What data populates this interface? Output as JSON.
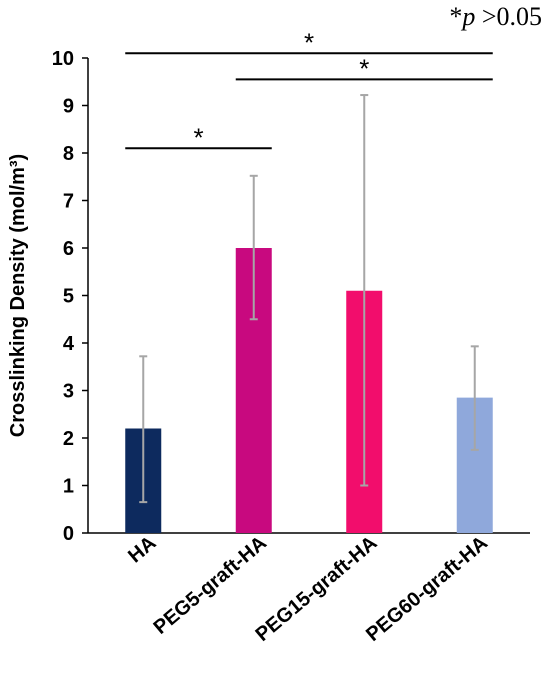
{
  "note": {
    "star": "*",
    "p": "p",
    "rest": " >0.05"
  },
  "chart_data": {
    "type": "bar",
    "title": "",
    "xlabel": "",
    "ylabel": "Crosslinking Density (mol/m³)",
    "ylim": [
      0,
      10
    ],
    "yticks": [
      0,
      1,
      2,
      3,
      4,
      5,
      6,
      7,
      8,
      9,
      10
    ],
    "categories": [
      "HA",
      "PEG5-graft-HA",
      "PEG15-graft-HA",
      "PEG60-graft-HA"
    ],
    "values": [
      2.2,
      6.0,
      5.1,
      2.85
    ],
    "error_low": [
      0.65,
      4.5,
      1.0,
      1.75
    ],
    "error_high": [
      3.72,
      7.52,
      9.22,
      3.93
    ],
    "colors": [
      "#0d2a5e",
      "#c8097f",
      "#f20d6c",
      "#8fa8db"
    ],
    "grid": false,
    "significance": [
      {
        "from": 0,
        "to": 3,
        "y": 10.1,
        "label": "*"
      },
      {
        "from": 1,
        "to": 3,
        "y": 9.55,
        "label": "*"
      },
      {
        "from": 0,
        "to": 1,
        "y": 8.1,
        "label": "*"
      }
    ]
  }
}
